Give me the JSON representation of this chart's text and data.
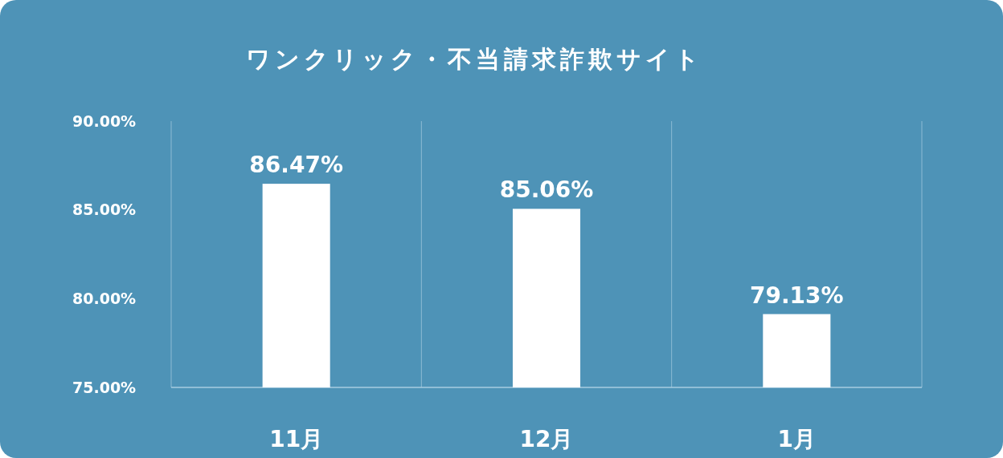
{
  "chart_data": {
    "type": "bar",
    "title": "ワンクリック・不当請求詐欺サイト",
    "categories": [
      "11月",
      "12月",
      "1月"
    ],
    "values": [
      86.47,
      85.06,
      79.13
    ],
    "value_labels": [
      "86.47%",
      "85.06%",
      "79.13%"
    ],
    "color": "#ffffff",
    "ylim": [
      75,
      90
    ],
    "yticks": [
      {
        "value": 75,
        "label": "75.00%"
      },
      {
        "value": 80,
        "label": "80.00%"
      },
      {
        "value": 85,
        "label": "85.00%"
      },
      {
        "value": 90,
        "label": "90.00%"
      }
    ],
    "grid": "x"
  }
}
